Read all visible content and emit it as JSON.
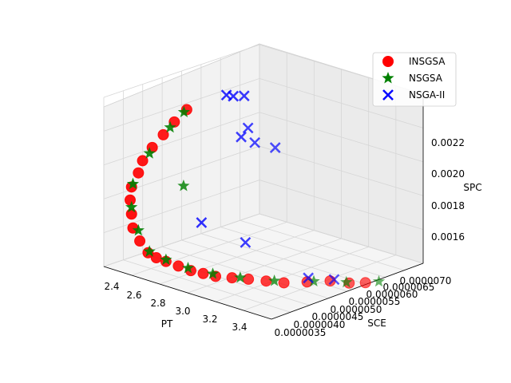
{
  "chart_data": {
    "type": "scatter",
    "projection": "3d",
    "x_label": "PT",
    "y_label": "SCE",
    "z_label": "SPC",
    "x_ticks": [
      "2.4",
      "2.6",
      "2.8",
      "3.0",
      "3.2",
      "3.4"
    ],
    "y_ticks": [
      "0.0000035",
      "0.0000040",
      "0.0000045",
      "0.0000050",
      "0.0000055",
      "0.0000060",
      "0.0000065",
      "0.0000070"
    ],
    "z_ticks": [
      "0.0016",
      "0.0018",
      "0.0020",
      "0.0022"
    ],
    "legend": {
      "placement": "top-right"
    },
    "grid": true,
    "series": [
      {
        "name": "INSGSA",
        "color": "#ff0000",
        "marker": "circle",
        "points": [
          [
            2.55,
            3.8e-06,
            0.00155
          ],
          [
            2.58,
            3.9e-06,
            0.00152
          ],
          [
            2.62,
            4e-06,
            0.0015
          ],
          [
            2.68,
            4.1e-06,
            0.00148
          ],
          [
            2.74,
            4.2e-06,
            0.00146
          ],
          [
            2.8,
            4.3e-06,
            0.00145
          ],
          [
            2.86,
            4.4e-06,
            0.00144
          ],
          [
            2.92,
            4.6e-06,
            0.00143
          ],
          [
            2.98,
            4.8e-06,
            0.00142
          ],
          [
            3.05,
            5e-06,
            0.00141
          ],
          [
            3.12,
            5.2e-06,
            0.0014
          ],
          [
            3.2,
            5.5e-06,
            0.0014
          ],
          [
            3.28,
            5.8e-06,
            0.0014
          ],
          [
            3.36,
            6e-06,
            0.00139
          ],
          [
            3.42,
            6.2e-06,
            0.00139
          ],
          [
            2.52,
            3.7e-06,
            0.00162
          ],
          [
            2.5,
            3.6e-06,
            0.0017
          ],
          [
            2.49,
            3.6e-06,
            0.00178
          ],
          [
            2.48,
            3.6e-06,
            0.00186
          ],
          [
            2.49,
            3.6e-06,
            0.00194
          ],
          [
            2.51,
            3.7e-06,
            0.00202
          ],
          [
            2.54,
            3.7e-06,
            0.0021
          ],
          [
            2.58,
            3.8e-06,
            0.00218
          ],
          [
            2.63,
            3.9e-06,
            0.00226
          ],
          [
            2.68,
            4e-06,
            0.00234
          ],
          [
            2.74,
            4.1e-06,
            0.00242
          ]
        ]
      },
      {
        "name": "NSGSA",
        "color": "#008000",
        "marker": "star",
        "points": [
          [
            2.56,
            3.8e-06,
            0.00156
          ],
          [
            2.62,
            4e-06,
            0.00151
          ],
          [
            2.72,
            4.2e-06,
            0.00147
          ],
          [
            2.84,
            4.4e-06,
            0.00145
          ],
          [
            2.95,
            4.7e-06,
            0.00143
          ],
          [
            3.08,
            5.1e-06,
            0.00141
          ],
          [
            3.22,
            5.6e-06,
            0.0014
          ],
          [
            3.34,
            6e-06,
            0.00139
          ],
          [
            3.46,
            6.4e-06,
            0.00139
          ],
          [
            2.51,
            3.7e-06,
            0.00168
          ],
          [
            2.49,
            3.6e-06,
            0.00182
          ],
          [
            2.5,
            3.6e-06,
            0.00196
          ],
          [
            2.56,
            3.8e-06,
            0.00214
          ],
          [
            2.65,
            4e-06,
            0.0023
          ],
          [
            2.72,
            4.1e-06,
            0.0024
          ],
          [
            2.6,
            4.5e-06,
            0.0019
          ]
        ]
      },
      {
        "name": "NSGA-II",
        "color": "#0000ff",
        "marker": "x",
        "points": [
          [
            2.88,
            4.6e-06,
            0.0025
          ],
          [
            2.9,
            4.7e-06,
            0.00249
          ],
          [
            2.92,
            4.9e-06,
            0.00248
          ],
          [
            2.84,
            5.1e-06,
            0.0022
          ],
          [
            2.88,
            5.3e-06,
            0.00216
          ],
          [
            2.94,
            5.6e-06,
            0.00212
          ],
          [
            2.86,
            5.2e-06,
            0.00225
          ],
          [
            2.7,
            4.6e-06,
            0.0017
          ],
          [
            2.9,
            5e-06,
            0.0016
          ],
          [
            3.18,
            5.6e-06,
            0.00141
          ],
          [
            3.28,
            5.9e-06,
            0.0014
          ]
        ]
      }
    ]
  }
}
